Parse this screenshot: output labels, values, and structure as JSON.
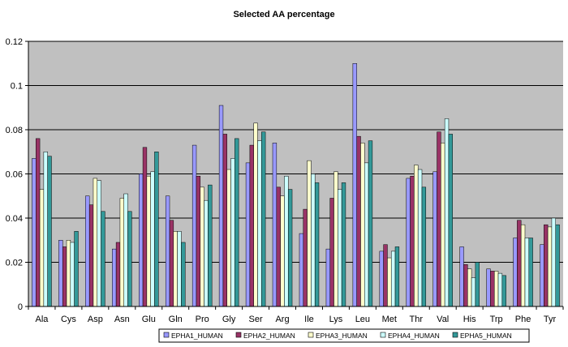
{
  "chart_data": {
    "type": "bar",
    "title": "Selected AA percentage",
    "xlabel": "",
    "ylabel": "",
    "ylim": [
      0,
      0.12
    ],
    "yticks": [
      "0",
      "0.02",
      "0.04",
      "0.06",
      "0.08",
      "0.1",
      "0.12"
    ],
    "ytick_values": [
      0,
      0.02,
      0.04,
      0.06,
      0.08,
      0.1,
      0.12
    ],
    "grid": true,
    "legend_position": "bottom",
    "plot_background": "#c0c0c0",
    "categories": [
      "Ala",
      "Cys",
      "Asp",
      "Asn",
      "Glu",
      "Gln",
      "Pro",
      "Gly",
      "Ser",
      "Arg",
      "Ile",
      "Lys",
      "Leu",
      "Met",
      "Thr",
      "Val",
      "His",
      "Trp",
      "Phe",
      "Tyr"
    ],
    "series": [
      {
        "name": "EPHA1_HUMAN",
        "color": "#9999ff",
        "values": [
          0.067,
          0.03,
          0.05,
          0.026,
          0.06,
          0.05,
          0.073,
          0.091,
          0.065,
          0.074,
          0.033,
          0.026,
          0.11,
          0.025,
          0.058,
          0.061,
          0.027,
          0.017,
          0.031,
          0.028
        ]
      },
      {
        "name": "EPHA2_HUMAN",
        "color": "#993366",
        "values": [
          0.076,
          0.027,
          0.046,
          0.029,
          0.072,
          0.039,
          0.059,
          0.078,
          0.073,
          0.054,
          0.044,
          0.049,
          0.077,
          0.028,
          0.059,
          0.079,
          0.019,
          0.016,
          0.039,
          0.037
        ]
      },
      {
        "name": "EPHA3_HUMAN",
        "color": "#ffffcc",
        "values": [
          0.053,
          0.03,
          0.058,
          0.049,
          0.059,
          0.034,
          0.054,
          0.062,
          0.083,
          0.05,
          0.066,
          0.061,
          0.074,
          0.022,
          0.064,
          0.074,
          0.017,
          0.016,
          0.037,
          0.036
        ]
      },
      {
        "name": "EPHA4_HUMAN",
        "color": "#ccffff",
        "values": [
          0.07,
          0.029,
          0.057,
          0.051,
          0.061,
          0.034,
          0.048,
          0.067,
          0.075,
          0.059,
          0.06,
          0.053,
          0.065,
          0.025,
          0.062,
          0.085,
          0.013,
          0.015,
          0.031,
          0.04
        ]
      },
      {
        "name": "EPHA5_HUMAN",
        "color": "#339999",
        "values": [
          0.068,
          0.034,
          0.043,
          0.043,
          0.07,
          0.029,
          0.055,
          0.076,
          0.079,
          0.053,
          0.056,
          0.056,
          0.075,
          0.027,
          0.054,
          0.078,
          0.02,
          0.014,
          0.031,
          0.037
        ]
      }
    ]
  }
}
